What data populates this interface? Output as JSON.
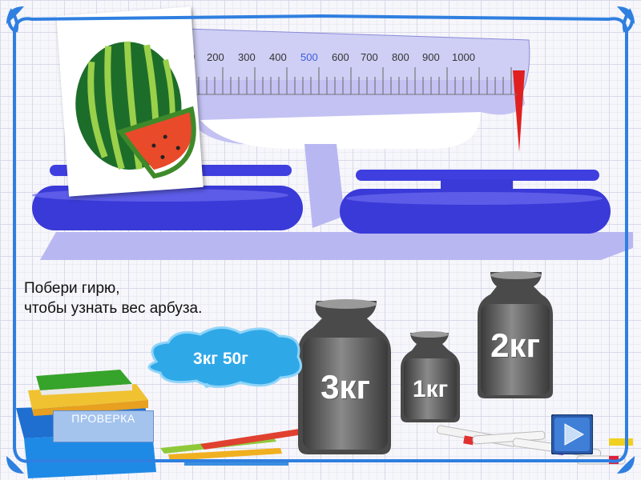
{
  "scale": {
    "tick_labels": [
      "00",
      "200",
      "300",
      "400",
      "500",
      "600",
      "700",
      "800",
      "900",
      "1000"
    ],
    "highlight_label": "500"
  },
  "instruction": {
    "line1": "Побери гирю,",
    "line2": "чтобы узнать вес арбуза."
  },
  "answer_cloud": {
    "text": "3кг 50г"
  },
  "weights": [
    {
      "label": "3кг"
    },
    {
      "label": "1кг"
    },
    {
      "label": "2кг"
    }
  ],
  "check_button": {
    "label": "ПРОВЕРКА"
  },
  "colors": {
    "frame": "#2f7fe0",
    "pan": "#3f3fe0",
    "platform": "#b9b7f2",
    "cloud": "#2fa8e8",
    "highlight": "#3b5bd9",
    "check_button": "#a4c4ee"
  },
  "icons": [
    "watermelon-image",
    "books-image",
    "pencils-image",
    "markers-image",
    "play-icon"
  ]
}
